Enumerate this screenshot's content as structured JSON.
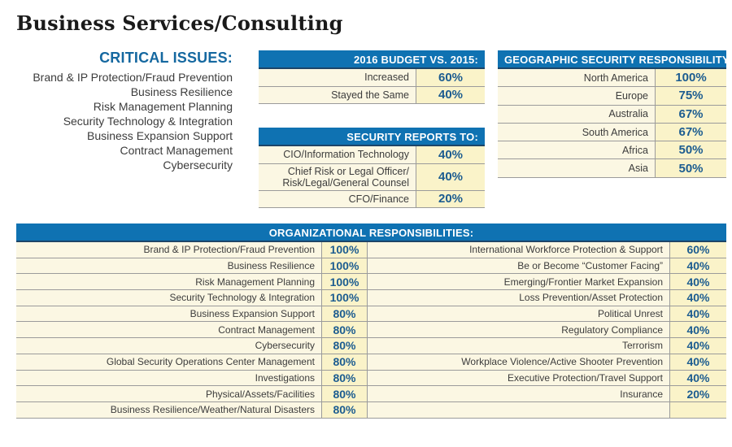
{
  "page": {
    "title": "Business Services/Consulting"
  },
  "critical_issues": {
    "heading": "CRITICAL ISSUES:",
    "items": [
      "Brand & IP Protection/Fraud Prevention",
      "Business Resilience",
      "Risk Management Planning",
      "Security Technology & Integration",
      "Business Expansion Support",
      "Contract Management",
      "Cybersecurity"
    ]
  },
  "budget_table": {
    "header": "2016 BUDGET VS. 2015:",
    "rows": [
      {
        "label": "Increased",
        "value": "60%"
      },
      {
        "label": "Stayed the Same",
        "value": "40%"
      }
    ]
  },
  "reports_table": {
    "header": "SECURITY REPORTS TO:",
    "rows": [
      {
        "label": "CIO/Information Technology",
        "value": "40%"
      },
      {
        "label": "Chief Risk or Legal Officer/ Risk/Legal/General Counsel",
        "value": "40%"
      },
      {
        "label": "CFO/Finance",
        "value": "20%"
      }
    ]
  },
  "geographic_table": {
    "header": "GEOGRAPHIC SECURITY RESPONSIBILITY:",
    "rows": [
      {
        "label": "North America",
        "value": "100%"
      },
      {
        "label": "Europe",
        "value": "75%"
      },
      {
        "label": "Australia",
        "value": "67%"
      },
      {
        "label": "South America",
        "value": "67%"
      },
      {
        "label": "Africa",
        "value": "50%"
      },
      {
        "label": "Asia",
        "value": "50%"
      }
    ]
  },
  "organizational_table": {
    "header": "ORGANIZATIONAL RESPONSIBILITIES:",
    "left_rows": [
      {
        "label": "Brand & IP Protection/Fraud Prevention",
        "value": "100%"
      },
      {
        "label": "Business Resilience",
        "value": "100%"
      },
      {
        "label": "Risk Management Planning",
        "value": "100%"
      },
      {
        "label": "Security Technology & Integration",
        "value": "100%"
      },
      {
        "label": "Business Expansion Support",
        "value": "80%"
      },
      {
        "label": "Contract Management",
        "value": "80%"
      },
      {
        "label": "Cybersecurity",
        "value": "80%"
      },
      {
        "label": "Global Security Operations Center Management",
        "value": "80%"
      },
      {
        "label": "Investigations",
        "value": "80%"
      },
      {
        "label": "Physical/Assets/Facilities",
        "value": "80%"
      },
      {
        "label": "Business Resilience/Weather/Natural Disasters",
        "value": "80%"
      }
    ],
    "right_rows": [
      {
        "label": "International Workforce Protection & Support",
        "value": "60%"
      },
      {
        "label": "Be or Become “Customer Facing”",
        "value": "40%"
      },
      {
        "label": "Emerging/Frontier Market Expansion",
        "value": "40%"
      },
      {
        "label": "Loss Prevention/Asset Protection",
        "value": "40%"
      },
      {
        "label": "Political Unrest",
        "value": "40%"
      },
      {
        "label": "Regulatory Compliance",
        "value": "40%"
      },
      {
        "label": "Terrorism",
        "value": "40%"
      },
      {
        "label": "Workplace Violence/Active Shooter Prevention",
        "value": "40%"
      },
      {
        "label": "Executive Protection/Travel Support",
        "value": "40%"
      },
      {
        "label": "Insurance",
        "value": "20%"
      },
      {
        "label": "",
        "value": ""
      }
    ]
  },
  "colors": {
    "header_bg": "#0f72b2",
    "header_text": "#ffffff",
    "header_underline": "#1d4568",
    "heading_blue": "#1568a0",
    "percent_text": "#1c5c90",
    "label_text": "#3c3c3c",
    "row_bg": "#fbf7e3",
    "value_bg": "#faf3c9",
    "border_gray": "#9b9b9b",
    "title_text": "#1a1a1a"
  }
}
